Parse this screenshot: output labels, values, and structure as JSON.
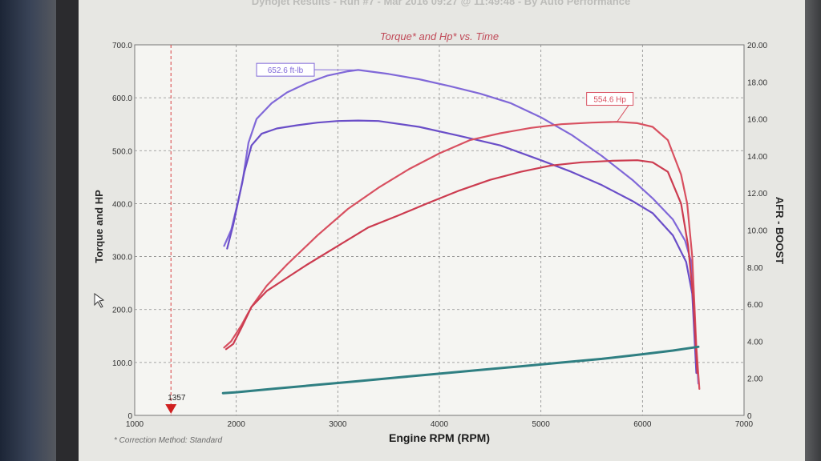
{
  "header": {
    "top_caption": "Dynojet Results - Run #7 - Mar 2016 09:27 @ 11:49:48 - By Auto Performance"
  },
  "chart_data": {
    "type": "line",
    "title": "Torque* and Hp* vs. Time",
    "xlabel": "Engine RPM (RPM)",
    "ylabel_left": "Torque and HP",
    "ylabel_right": "AFR - BOOST",
    "footnote": "* Correction Method: Standard",
    "marker_label": "1357",
    "marker_rpm": 1357,
    "xlim": [
      1000,
      7000
    ],
    "ylim_left": [
      0,
      700
    ],
    "ylim_right": [
      0,
      20
    ],
    "x_ticks": [
      "1000",
      "2000",
      "3000",
      "4000",
      "5000",
      "6000",
      "7000"
    ],
    "y_ticks_left": [
      "0",
      "100.0",
      "200.0",
      "300.0",
      "400.0",
      "500.0",
      "600.0",
      "700.0"
    ],
    "y_ticks_right": [
      "0",
      "2.00",
      "4.00",
      "6.00",
      "8.00",
      "10.00",
      "12.00",
      "14.00",
      "16.00",
      "18.00",
      "20.00"
    ],
    "grid": true,
    "annotations": [
      {
        "text": "652.6 ft-lb",
        "x": 3200,
        "y": 652.6,
        "color": "#8068d8"
      },
      {
        "text": "554.6 Hp",
        "x": 5750,
        "y": 554.6,
        "color": "#d85060"
      }
    ],
    "series": [
      {
        "color": "#8068d8",
        "axis": "left",
        "x": [
          1880,
          1950,
          2000,
          2060,
          2120,
          2200,
          2350,
          2500,
          2700,
          2900,
          3100,
          3200,
          3500,
          3800,
          4100,
          4400,
          4700,
          5000,
          5300,
          5600,
          5900,
          6100,
          6300,
          6420,
          6480,
          6520,
          6550
        ],
        "y": [
          320,
          350,
          390,
          440,
          515,
          560,
          590,
          610,
          628,
          642,
          650,
          652.6,
          645,
          635,
          622,
          608,
          590,
          563,
          530,
          490,
          445,
          410,
          370,
          330,
          290,
          150,
          60
        ]
      },
      {
        "color": "#6a4ec8",
        "axis": "left",
        "x": [
          1910,
          1970,
          2020,
          2080,
          2150,
          2250,
          2400,
          2600,
          2800,
          3000,
          3200,
          3400,
          3800,
          4200,
          4600,
          5000,
          5300,
          5600,
          5900,
          6100,
          6300,
          6430,
          6490,
          6530
        ],
        "y": [
          315,
          360,
          405,
          460,
          510,
          532,
          542,
          548,
          553,
          556,
          557,
          556,
          545,
          528,
          510,
          482,
          460,
          435,
          405,
          382,
          340,
          290,
          230,
          80
        ]
      },
      {
        "color": "#d85060",
        "axis": "left",
        "x": [
          1880,
          1950,
          2050,
          2150,
          2300,
          2500,
          2800,
          3100,
          3400,
          3700,
          4000,
          4300,
          4600,
          4900,
          5200,
          5500,
          5750,
          5950,
          6100,
          6250,
          6380,
          6440,
          6490,
          6530,
          6560
        ],
        "y": [
          128,
          140,
          170,
          205,
          245,
          285,
          340,
          390,
          430,
          465,
          495,
          520,
          533,
          543,
          550,
          553,
          554.6,
          552,
          545,
          520,
          455,
          400,
          300,
          130,
          50
        ]
      },
      {
        "color": "#cc3c50",
        "axis": "left",
        "x": [
          1900,
          1970,
          2050,
          2150,
          2300,
          2500,
          2700,
          3000,
          3300,
          3600,
          3900,
          4200,
          4500,
          4800,
          5100,
          5400,
          5700,
          5950,
          6100,
          6250,
          6380,
          6450,
          6500,
          6540
        ],
        "y": [
          125,
          135,
          165,
          205,
          235,
          260,
          285,
          320,
          355,
          378,
          402,
          425,
          445,
          460,
          472,
          478,
          481,
          482,
          478,
          460,
          400,
          320,
          220,
          80
        ]
      },
      {
        "color": "#2f7f82",
        "axis": "right",
        "x": [
          1870,
          2000,
          2400,
          2800,
          3200,
          3600,
          4000,
          4400,
          4800,
          5200,
          5600,
          6000,
          6300,
          6550
        ],
        "y": [
          1.2,
          1.25,
          1.45,
          1.65,
          1.85,
          2.05,
          2.25,
          2.45,
          2.65,
          2.85,
          3.05,
          3.3,
          3.5,
          3.7
        ]
      }
    ]
  }
}
